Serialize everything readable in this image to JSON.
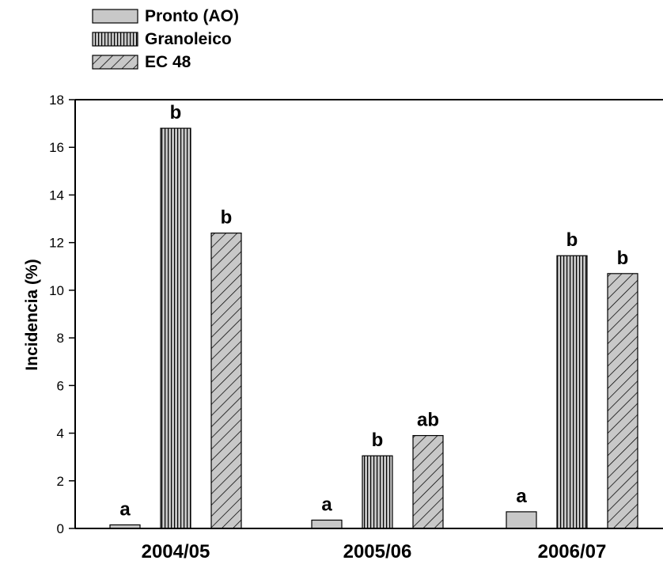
{
  "chart_data": {
    "type": "bar",
    "categories": [
      "2004/05",
      "2005/06",
      "2006/07"
    ],
    "series": [
      {
        "name": "Pronto (AO)",
        "values": [
          0.15,
          0.35,
          0.7
        ],
        "significance": [
          "a",
          "a",
          "a"
        ],
        "fill": "#c8c8c8",
        "pattern": "solid"
      },
      {
        "name": "Granoleico",
        "values": [
          16.8,
          3.05,
          11.45
        ],
        "significance": [
          "b",
          "b",
          "b"
        ],
        "fill": "#c8c8c8",
        "pattern": "vertical-lines"
      },
      {
        "name": "EC 48",
        "values": [
          12.4,
          3.9,
          10.7
        ],
        "significance": [
          "b",
          "ab",
          "b"
        ],
        "fill": "#c8c8c8",
        "pattern": "diagonal-lines"
      }
    ],
    "title": "",
    "xlabel": "",
    "ylabel": "Incidencia (%)",
    "ylim": [
      0,
      18
    ],
    "yticks": [
      0,
      2,
      4,
      6,
      8,
      10,
      12,
      14,
      16,
      18
    ],
    "grid": false,
    "legend_position": "top-left"
  }
}
